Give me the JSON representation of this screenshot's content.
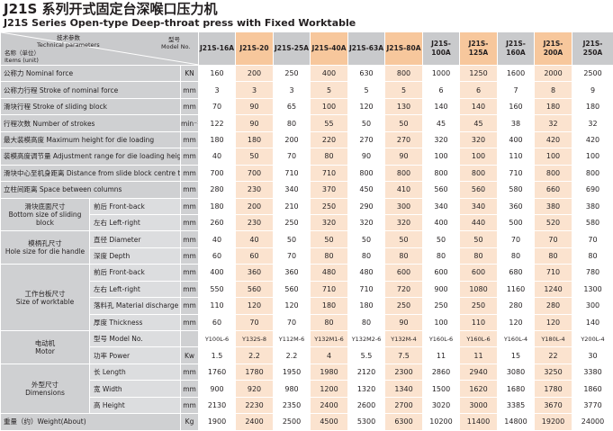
{
  "title": "J21S  系列开式固定台深喉口压力机",
  "subtitle": "J21S Series Open-type Deep-throat press with Fixed Worktable",
  "header": {
    "tech_params": "技术参数",
    "tech_params_en": "Technical parameters",
    "name_unit": "名称（单位）",
    "items_unit": "Items (unit)",
    "model": "型号",
    "model_en": "Model No."
  },
  "models": [
    "J21S-16A",
    "J21S-20",
    "J21S-25A",
    "J21S-40A",
    "J21S-63A",
    "J21S-80A",
    "J21S-100A",
    "J21S-125A",
    "J21S-160A",
    "J21S-200A",
    "J21S-250A"
  ],
  "rows": [
    {
      "label": "公称力  Nominal force",
      "unit": "KN",
      "values": [
        "160",
        "200",
        "250",
        "400",
        "630",
        "800",
        "1000",
        "1250",
        "1600",
        "2000",
        "2500"
      ]
    },
    {
      "label": "公称力行程  Stroke of nominal force",
      "unit": "mm",
      "values": [
        "3",
        "3",
        "3",
        "5",
        "5",
        "5",
        "6",
        "6",
        "7",
        "8",
        "9"
      ]
    },
    {
      "label": "滑块行程  Stroke of sliding block",
      "unit": "mm",
      "values": [
        "70",
        "90",
        "65",
        "100",
        "120",
        "130",
        "140",
        "140",
        "160",
        "180",
        "180"
      ]
    },
    {
      "label": "行程次数  Number of strokes",
      "unit": "min⁻¹",
      "values": [
        "122",
        "90",
        "80",
        "55",
        "50",
        "50",
        "45",
        "45",
        "38",
        "32",
        "32"
      ]
    },
    {
      "label": "最大装模高度  Maximum height for die loading",
      "unit": "mm",
      "values": [
        "180",
        "180",
        "200",
        "220",
        "270",
        "270",
        "320",
        "320",
        "400",
        "420",
        "420"
      ]
    },
    {
      "label": "装模高度调节量  Adjustment range for die loading height",
      "unit": "mm",
      "values": [
        "40",
        "50",
        "70",
        "80",
        "90",
        "90",
        "100",
        "100",
        "110",
        "100",
        "100"
      ]
    },
    {
      "label": "滑块中心至机身距离  Distance from slide block centre to the frame",
      "unit": "mm",
      "values": [
        "700",
        "700",
        "710",
        "710",
        "800",
        "800",
        "800",
        "800",
        "710",
        "800",
        "800"
      ]
    },
    {
      "label": "立柱间距离  Space between columns",
      "unit": "mm",
      "values": [
        "280",
        "230",
        "340",
        "370",
        "450",
        "410",
        "560",
        "560",
        "580",
        "660",
        "690"
      ]
    },
    {
      "group": "slide",
      "label": "前后  Front-back",
      "unit": "mm",
      "values": [
        "180",
        "200",
        "210",
        "250",
        "290",
        "300",
        "340",
        "340",
        "360",
        "380",
        "380"
      ]
    },
    {
      "group": "slide",
      "label": "左右  Left-right",
      "unit": "mm",
      "values": [
        "260",
        "230",
        "250",
        "320",
        "320",
        "320",
        "400",
        "440",
        "500",
        "520",
        "580"
      ]
    },
    {
      "group": "hole",
      "label": "直径  Diameter",
      "unit": "mm",
      "values": [
        "40",
        "40",
        "50",
        "50",
        "50",
        "50",
        "50",
        "50",
        "70",
        "70",
        "70"
      ]
    },
    {
      "group": "hole",
      "label": "深度  Depth",
      "unit": "mm",
      "values": [
        "60",
        "60",
        "70",
        "80",
        "80",
        "80",
        "80",
        "80",
        "80",
        "80",
        "80"
      ]
    },
    {
      "group": "work",
      "label": "前后  Front-back",
      "unit": "mm",
      "values": [
        "400",
        "360",
        "360",
        "480",
        "480",
        "600",
        "600",
        "600",
        "680",
        "710",
        "780"
      ]
    },
    {
      "group": "work",
      "label": "左右  Left-right",
      "unit": "mm",
      "values": [
        "550",
        "560",
        "560",
        "710",
        "710",
        "720",
        "900",
        "1080",
        "1160",
        "1240",
        "1300"
      ]
    },
    {
      "group": "work",
      "label": "落料孔  Material discharge hole",
      "unit": "mm",
      "values": [
        "110",
        "120",
        "120",
        "180",
        "180",
        "250",
        "250",
        "250",
        "280",
        "280",
        "300"
      ]
    },
    {
      "group": "work",
      "label": "厚度  Thickness",
      "unit": "mm",
      "values": [
        "60",
        "70",
        "70",
        "80",
        "80",
        "90",
        "100",
        "110",
        "120",
        "120",
        "140"
      ]
    },
    {
      "group": "motor",
      "label": "型号  Model No.",
      "unit": "",
      "values": [
        "Y100L-6",
        "Y132S-8",
        "Y112M-6",
        "Y132M1-6",
        "Y132M2-6",
        "Y132M-4",
        "Y160L-6",
        "Y160L-6",
        "Y160L-4",
        "Y180L-4",
        "Y200L-4"
      ]
    },
    {
      "group": "motor",
      "label": "功率  Power",
      "unit": "Kw",
      "values": [
        "1.5",
        "2.2",
        "2.2",
        "4",
        "5.5",
        "7.5",
        "11",
        "11",
        "15",
        "22",
        "30"
      ]
    },
    {
      "group": "dim",
      "label": "长  Length",
      "unit": "mm",
      "values": [
        "1760",
        "1780",
        "1950",
        "1980",
        "2120",
        "2300",
        "2860",
        "2940",
        "3080",
        "3250",
        "3380"
      ]
    },
    {
      "group": "dim",
      "label": "宽  Width",
      "unit": "mm",
      "values": [
        "900",
        "920",
        "980",
        "1200",
        "1320",
        "1340",
        "1500",
        "1620",
        "1680",
        "1780",
        "1860"
      ]
    },
    {
      "group": "dim",
      "label": "高  Height",
      "unit": "mm",
      "values": [
        "2130",
        "2230",
        "2350",
        "2400",
        "2600",
        "2700",
        "3020",
        "3000",
        "3385",
        "3670",
        "3770"
      ]
    },
    {
      "label": "重量（约）Weight(About)",
      "unit": "Kg",
      "values": [
        "1900",
        "2400",
        "2500",
        "4500",
        "5300",
        "6300",
        "10200",
        "11400",
        "14800",
        "19200",
        "24000"
      ]
    }
  ],
  "groups": {
    "slide": {
      "cn": "滑块底面尺寸",
      "en": "Bottom size of sliding block"
    },
    "hole": {
      "cn": "模柄孔尺寸",
      "en": "Hole size for die handle"
    },
    "work": {
      "cn": "工作台板尺寸",
      "en": "Size of worktable"
    },
    "motor": {
      "cn": "电动机",
      "en": "Motor"
    },
    "dim": {
      "cn": "外型尺寸",
      "en": "Dimensions"
    }
  },
  "colors": {
    "gray": "#cfd0d2",
    "header_highlight": "#f7c79c",
    "cell_highlight": "#fbe3cf"
  }
}
